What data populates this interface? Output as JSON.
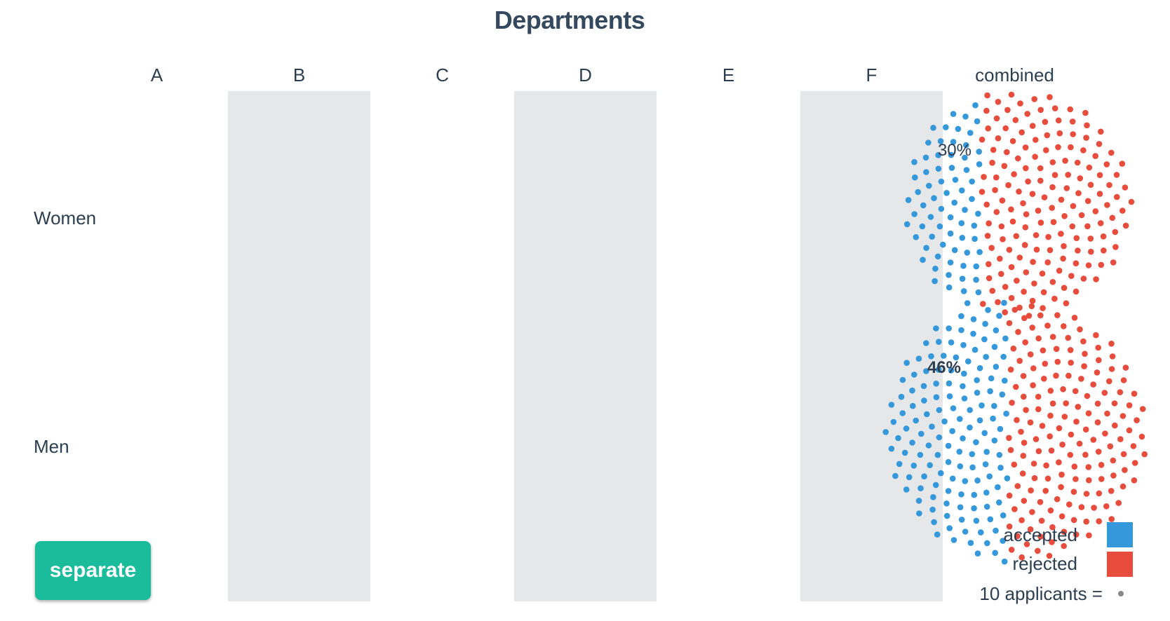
{
  "chart_data": {
    "type": "scatter",
    "title": "Departments",
    "columns": [
      "A",
      "B",
      "C",
      "D",
      "E",
      "F",
      "combined"
    ],
    "rows": [
      "Women",
      "Men"
    ],
    "unit": "10 applicants",
    "series": [
      {
        "name": "Women",
        "column": "combined",
        "accepted_pct": 30,
        "pct_label": "30%"
      },
      {
        "name": "Men",
        "column": "combined",
        "accepted_pct": 46,
        "pct_label": "46%"
      }
    ],
    "legend": {
      "accepted": "accepted",
      "rejected": "rejected",
      "unit_label": "10 applicants ="
    },
    "colors": {
      "accepted": "#3498db",
      "rejected": "#e74c3c",
      "stripe": "#e6e7e8",
      "unit_dot": "#888888"
    }
  },
  "controls": {
    "toggle_label": "separate"
  }
}
